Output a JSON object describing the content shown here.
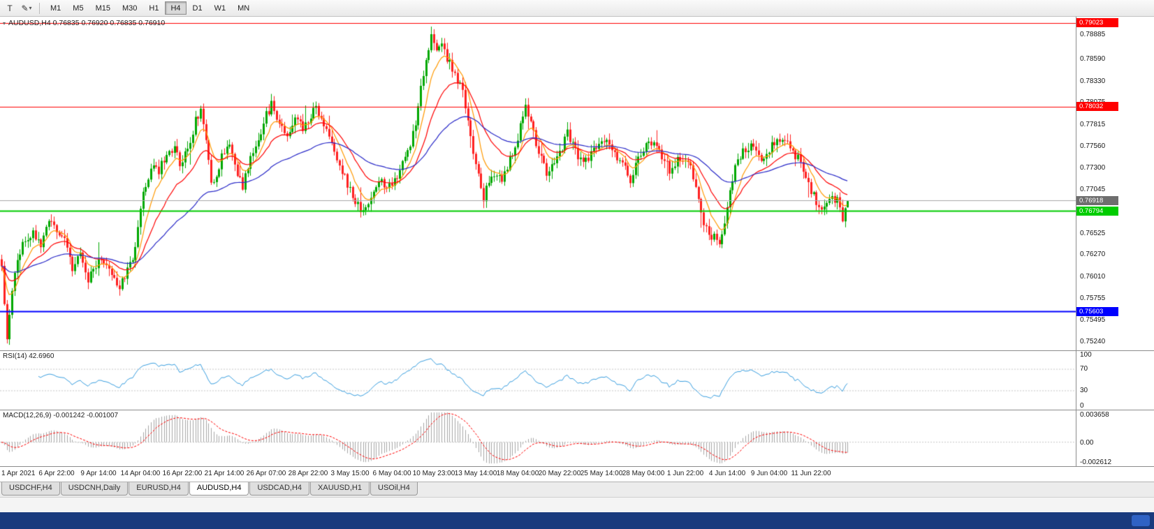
{
  "toolbar": {
    "text_tool_glyph": "T",
    "draw_tool_glyph": "✎",
    "dropdown_glyph": "▾",
    "timeframes": [
      "M1",
      "M5",
      "M15",
      "M30",
      "H1",
      "H4",
      "D1",
      "W1",
      "MN"
    ],
    "active_timeframe": "H4"
  },
  "tabs": {
    "items": [
      "USDCHF,H4",
      "USDCNH,Daily",
      "EURUSD,H4",
      "AUDUSD,H4",
      "USDCAD,H4",
      "XAUUSD,H1",
      "USOil,H4"
    ],
    "active": "AUDUSD,H4"
  },
  "chart_data": {
    "type": "candlestick",
    "title": "AUDUSD,H4",
    "symbol": "AUDUSD",
    "timeframe": "H4",
    "ohlc_label": "AUDUSD,H4 0.76835 0.76920 0.76835 0.76910",
    "last_bar": {
      "open": 0.76835,
      "high": 0.7692,
      "low": 0.76835,
      "close": 0.7691
    },
    "bid_line": {
      "price": 0.76918,
      "label": "0.76918",
      "color": "#6e6e6e"
    },
    "price_range": {
      "min": 0.7514,
      "max": 0.79097
    },
    "price_axis_ticks": [
      0.78885,
      0.7859,
      0.7833,
      0.78075,
      0.77815,
      0.7756,
      0.773,
      0.77045,
      0.7679,
      0.76525,
      0.7627,
      0.7601,
      0.75755,
      0.75495,
      0.7524
    ],
    "horizontal_lines": [
      {
        "price": 0.79023,
        "label": "0.79023",
        "color": "#ff0000",
        "width": 1
      },
      {
        "price": 0.78032,
        "label": "0.78032",
        "color": "#ff0000",
        "width": 1
      },
      {
        "price": 0.76794,
        "label": "0.76794",
        "color": "#00cc00",
        "width": 2
      },
      {
        "price": 0.75603,
        "label": "0.75603",
        "color": "#0000ff",
        "width": 2
      }
    ],
    "candle_count": 324,
    "plot": {
      "candle_spacing": 3.75,
      "body_width": 3
    },
    "seed": 11,
    "colors": {
      "bull": "#00a800",
      "bear": "#ff2020",
      "background": "#ffffff"
    },
    "moving_averages": [
      {
        "period": 8,
        "color": "#ff9900"
      },
      {
        "period": 20,
        "color": "#ff0000"
      },
      {
        "period": 55,
        "color": "#2929c8"
      }
    ],
    "price_waypoints": [
      [
        0,
        0.7614
      ],
      [
        1,
        0.7565
      ],
      [
        2,
        0.7526
      ],
      [
        4,
        0.7588
      ],
      [
        6,
        0.7622
      ],
      [
        9,
        0.7645
      ],
      [
        12,
        0.7656
      ],
      [
        15,
        0.7638
      ],
      [
        18,
        0.7666
      ],
      [
        21,
        0.7654
      ],
      [
        24,
        0.7646
      ],
      [
        27,
        0.7612
      ],
      [
        30,
        0.763
      ],
      [
        33,
        0.76
      ],
      [
        36,
        0.7616
      ],
      [
        39,
        0.7622
      ],
      [
        42,
        0.7604
      ],
      [
        45,
        0.759
      ],
      [
        48,
        0.7608
      ],
      [
        50,
        0.7624
      ],
      [
        52,
        0.766
      ],
      [
        54,
        0.7698
      ],
      [
        56,
        0.772
      ],
      [
        58,
        0.7738
      ],
      [
        60,
        0.7727
      ],
      [
        63,
        0.7746
      ],
      [
        66,
        0.7755
      ],
      [
        68,
        0.7737
      ],
      [
        71,
        0.775
      ],
      [
        74,
        0.7786
      ],
      [
        76,
        0.7799
      ],
      [
        78,
        0.776
      ],
      [
        80,
        0.7711
      ],
      [
        82,
        0.7721
      ],
      [
        84,
        0.7743
      ],
      [
        86,
        0.7755
      ],
      [
        88,
        0.7751
      ],
      [
        90,
        0.7726
      ],
      [
        92,
        0.7706
      ],
      [
        94,
        0.7733
      ],
      [
        96,
        0.775
      ],
      [
        98,
        0.7764
      ],
      [
        100,
        0.7786
      ],
      [
        103,
        0.7806
      ],
      [
        106,
        0.7785
      ],
      [
        109,
        0.777
      ],
      [
        112,
        0.779
      ],
      [
        115,
        0.7777
      ],
      [
        118,
        0.7787
      ],
      [
        120,
        0.7806
      ],
      [
        123,
        0.7779
      ],
      [
        126,
        0.7757
      ],
      [
        129,
        0.7737
      ],
      [
        132,
        0.7712
      ],
      [
        135,
        0.769
      ],
      [
        138,
        0.7678
      ],
      [
        141,
        0.7697
      ],
      [
        144,
        0.7717
      ],
      [
        147,
        0.7706
      ],
      [
        150,
        0.7717
      ],
      [
        153,
        0.7735
      ],
      [
        156,
        0.7759
      ],
      [
        158,
        0.7786
      ],
      [
        160,
        0.7828
      ],
      [
        162,
        0.786
      ],
      [
        164,
        0.7886
      ],
      [
        166,
        0.7866
      ],
      [
        168,
        0.788
      ],
      [
        170,
        0.7861
      ],
      [
        173,
        0.7839
      ],
      [
        176,
        0.7821
      ],
      [
        178,
        0.7789
      ],
      [
        180,
        0.7751
      ],
      [
        182,
        0.7721
      ],
      [
        184,
        0.7695
      ],
      [
        186,
        0.7713
      ],
      [
        188,
        0.7725
      ],
      [
        191,
        0.7719
      ],
      [
        194,
        0.7741
      ],
      [
        197,
        0.7767
      ],
      [
        200,
        0.78
      ],
      [
        202,
        0.7786
      ],
      [
        204,
        0.7761
      ],
      [
        206,
        0.7741
      ],
      [
        208,
        0.7721
      ],
      [
        210,
        0.7735
      ],
      [
        213,
        0.7747
      ],
      [
        216,
        0.7774
      ],
      [
        219,
        0.7751
      ],
      [
        222,
        0.7735
      ],
      [
        225,
        0.7747
      ],
      [
        228,
        0.7757
      ],
      [
        231,
        0.7767
      ],
      [
        234,
        0.7747
      ],
      [
        237,
        0.7735
      ],
      [
        240,
        0.7717
      ],
      [
        243,
        0.7739
      ],
      [
        246,
        0.7755
      ],
      [
        249,
        0.7765
      ],
      [
        252,
        0.7743
      ],
      [
        255,
        0.7729
      ],
      [
        258,
        0.7739
      ],
      [
        261,
        0.7743
      ],
      [
        264,
        0.7721
      ],
      [
        266,
        0.7699
      ],
      [
        268,
        0.7667
      ],
      [
        271,
        0.7649
      ],
      [
        274,
        0.7643
      ],
      [
        276,
        0.7667
      ],
      [
        278,
        0.7701
      ],
      [
        280,
        0.7735
      ],
      [
        283,
        0.7751
      ],
      [
        286,
        0.7759
      ],
      [
        289,
        0.7741
      ],
      [
        292,
        0.7747
      ],
      [
        295,
        0.7761
      ],
      [
        298,
        0.7767
      ],
      [
        301,
        0.7755
      ],
      [
        304,
        0.7741
      ],
      [
        307,
        0.7717
      ],
      [
        310,
        0.7697
      ],
      [
        313,
        0.7677
      ],
      [
        316,
        0.7697
      ],
      [
        319,
        0.7691
      ],
      [
        321,
        0.7671
      ],
      [
        323,
        0.7691
      ]
    ],
    "time_axis_labels": [
      "1 Apr 2021",
      "6 Apr 22:00",
      "9 Apr 14:00",
      "14 Apr 04:00",
      "16 Apr 22:00",
      "21 Apr 14:00",
      "26 Apr 07:00",
      "28 Apr 22:00",
      "3 May 15:00",
      "6 May 04:00",
      "10 May 23:00",
      "13 May 14:00",
      "18 May 04:00",
      "20 May 22:00",
      "25 May 14:00",
      "28 May 04:00",
      "1 Jun 22:00",
      "4 Jun 14:00",
      "9 Jun 04:00",
      "11 Jun 22:00"
    ],
    "label_candle_indices": [
      5,
      21,
      37,
      53,
      69,
      85,
      101,
      117,
      133,
      149,
      165,
      181,
      197,
      213,
      229,
      245,
      261,
      277,
      293,
      309
    ],
    "rsi": {
      "label": "RSI(14) 42.6960",
      "period": 14,
      "last_value": 42.696,
      "color": "#3a9fe0",
      "axis_ticks": [
        100,
        70,
        30,
        0
      ],
      "levels": [
        70,
        30
      ]
    },
    "macd": {
      "label": "MACD(12,26,9) -0.001242 -0.001007",
      "fast_period": 12,
      "slow_period": 26,
      "signal_period": 9,
      "main_value": -0.001242,
      "signal_value": -0.001007,
      "axis_tick_labels": [
        "0.003658",
        "0.00",
        "-0.002612"
      ],
      "axis_range": {
        "min": -0.002612,
        "max": 0.003658
      },
      "histogram_color": "#a6a6a6",
      "signal_color": "#ff0000"
    }
  }
}
